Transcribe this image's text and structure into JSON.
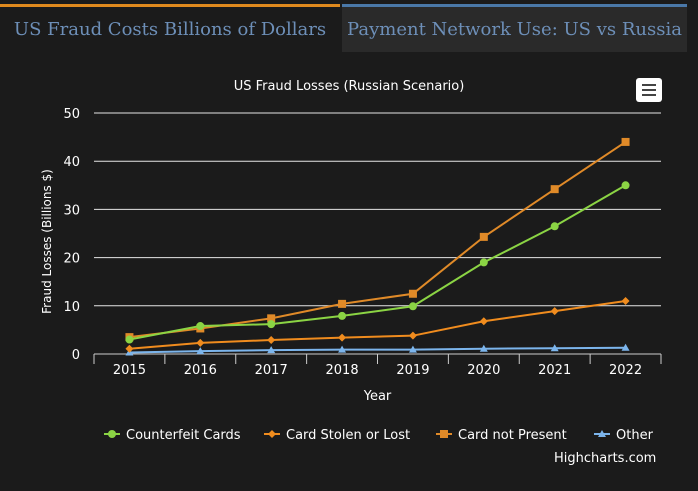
{
  "tabs": [
    {
      "label": "US Fraud Costs Billions of Dollars",
      "active": true
    },
    {
      "label": "Payment Network Use: US vs Russia",
      "active": false
    }
  ],
  "credit": "Highcharts.com",
  "colors": {
    "active_tab_accent": "#e08a1e",
    "inactive_tab_accent": "#4a78a8",
    "tab_text": "#6d8fb8",
    "background": "#1b1b1b"
  },
  "chart_data": {
    "type": "line",
    "title": "US Fraud Losses (Russian Scenario)",
    "xlabel": "Year",
    "ylabel": "Fraud Losses (Billions $)",
    "categories": [
      "2015",
      "2016",
      "2017",
      "2018",
      "2019",
      "2020",
      "2021",
      "2022"
    ],
    "ylim": [
      0,
      50
    ],
    "yticks": [
      0,
      10,
      20,
      30,
      40,
      50
    ],
    "grid": true,
    "legend": "bottom-center",
    "series": [
      {
        "name": "Counterfeit Cards",
        "color": "#8bd444",
        "marker": "circle",
        "values": [
          3.0,
          5.8,
          6.2,
          7.9,
          9.9,
          19.0,
          26.5,
          35.0
        ]
      },
      {
        "name": "Card Stolen or Lost",
        "color": "#f08c1e",
        "marker": "diamond",
        "values": [
          1.1,
          2.3,
          2.9,
          3.4,
          3.8,
          6.8,
          8.9,
          11.0
        ]
      },
      {
        "name": "Card not Present",
        "color": "#e08a28",
        "marker": "square",
        "values": [
          3.5,
          5.3,
          7.4,
          10.4,
          12.5,
          24.3,
          34.2,
          44.0
        ]
      },
      {
        "name": "Other",
        "color": "#7cb5ec",
        "marker": "triangle",
        "values": [
          0.3,
          0.6,
          0.8,
          0.9,
          0.9,
          1.1,
          1.2,
          1.3
        ]
      }
    ]
  }
}
